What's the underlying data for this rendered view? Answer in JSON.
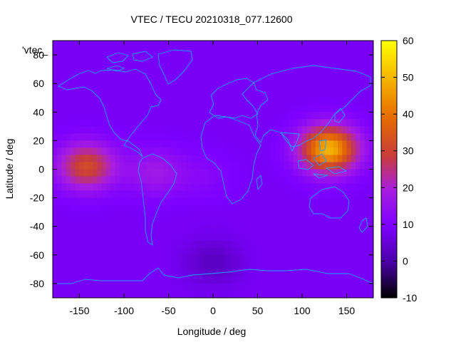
{
  "chart_data": {
    "type": "heatmap",
    "title": "VTEC / TECU 20210318_077.12600",
    "xlabel": "Longitude / deg",
    "ylabel": "Latitude / deg",
    "legend_entry": "'vtec_",
    "legend_placement": "top-left",
    "xlim": [
      -180,
      180
    ],
    "ylim": [
      -90,
      90
    ],
    "xticks": [
      -150,
      -100,
      -50,
      0,
      50,
      100,
      150
    ],
    "yticks": [
      -80,
      -60,
      -40,
      -20,
      0,
      20,
      40,
      60,
      80
    ],
    "colorbar": {
      "range": [
        -10,
        60
      ],
      "ticks": [
        -10,
        0,
        10,
        20,
        30,
        40,
        50,
        60
      ],
      "palette": [
        "#000000",
        "#4b00a8",
        "#7d00ff",
        "#a81ee0",
        "#c83c3c",
        "#e66b00",
        "#f5b400",
        "#ffff00"
      ]
    },
    "background_vtec": 9,
    "blobs": [
      {
        "region": "tropical Pacific / west of Americas",
        "lon": -142,
        "lat": 2,
        "peak_vtec": 33
      },
      {
        "region": "northern South America",
        "lon": -65,
        "lat": -2,
        "peak_vtec": 18
      },
      {
        "region": "Maritime Continent / western Pacific",
        "lon": 130,
        "lat": 14,
        "peak_vtec": 50
      },
      {
        "region": "Atlantic / Africa equatorial",
        "lon": -10,
        "lat": -5,
        "peak_vtec": 12
      },
      {
        "region": "South Pacific / Antarctic low",
        "lon": 0,
        "lat": -65,
        "peak_vtec": 3
      }
    ],
    "grid": false
  }
}
